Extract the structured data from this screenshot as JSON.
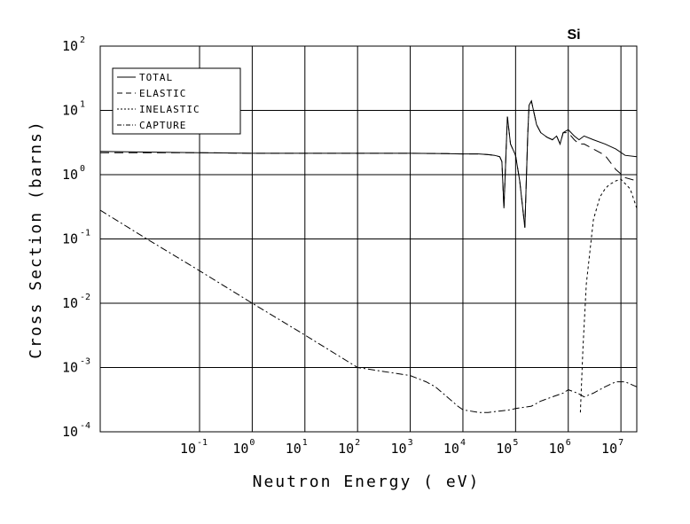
{
  "chart_data": {
    "type": "line",
    "title": "Si",
    "xlabel": "Neutron Energy ( eV)",
    "ylabel": "Cross Section (barns)",
    "xscale": "log",
    "yscale": "log",
    "xlim": [
      0.0013,
      20000000
    ],
    "ylim": [
      0.0001,
      100
    ],
    "grid": true,
    "legend_position": "top-left",
    "x_ticks": [
      {
        "base": "10",
        "exp": "-1",
        "value": 0.1
      },
      {
        "base": "10",
        "exp": "0",
        "value": 1
      },
      {
        "base": "10",
        "exp": "1",
        "value": 10
      },
      {
        "base": "10",
        "exp": "2",
        "value": 100
      },
      {
        "base": "10",
        "exp": "3",
        "value": 1000
      },
      {
        "base": "10",
        "exp": "4",
        "value": 10000
      },
      {
        "base": "10",
        "exp": "5",
        "value": 100000
      },
      {
        "base": "10",
        "exp": "6",
        "value": 1000000
      },
      {
        "base": "10",
        "exp": "7",
        "value": 10000000
      }
    ],
    "y_ticks": [
      {
        "base": "10",
        "exp": "2",
        "value": 100
      },
      {
        "base": "10",
        "exp": "1",
        "value": 10
      },
      {
        "base": "10",
        "exp": "0",
        "value": 1
      },
      {
        "base": "10",
        "exp": "-1",
        "value": 0.1
      },
      {
        "base": "10",
        "exp": "-2",
        "value": 0.01
      },
      {
        "base": "10",
        "exp": "-3",
        "value": 0.001
      },
      {
        "base": "10",
        "exp": "-4",
        "value": 0.0001
      }
    ],
    "series": [
      {
        "name": "TOTAL",
        "dash": "",
        "x": [
          0.0013,
          0.01,
          0.1,
          1,
          10,
          100,
          1000,
          5000,
          10000,
          20000,
          30000,
          40000,
          50000,
          55000,
          60000,
          70000,
          80000,
          100000,
          120000,
          150000,
          170000,
          180000,
          200000,
          250000,
          300000,
          400000,
          500000,
          600000,
          700000,
          800000,
          1000000,
          1300000,
          1600000,
          2000000,
          3000000,
          5000000,
          8000000,
          12000000,
          20000000
        ],
        "y": [
          2.3,
          2.25,
          2.2,
          2.15,
          2.15,
          2.15,
          2.15,
          2.12,
          2.1,
          2.1,
          2.05,
          2.0,
          1.9,
          1.6,
          0.3,
          8.0,
          3.0,
          2.0,
          0.8,
          0.15,
          4.0,
          12.0,
          14.0,
          6.0,
          4.5,
          3.8,
          3.5,
          4.0,
          3.0,
          4.5,
          5.0,
          4.0,
          3.5,
          4.0,
          3.5,
          3.0,
          2.5,
          2.0,
          1.9
        ]
      },
      {
        "name": "ELASTIC",
        "dash": "10,6",
        "x": [
          0.0013,
          0.01,
          0.1,
          1,
          10,
          100,
          1000,
          5000,
          10000,
          20000,
          30000,
          40000,
          50000,
          55000,
          60000,
          70000,
          80000,
          100000,
          120000,
          150000,
          170000,
          180000,
          200000,
          250000,
          300000,
          400000,
          500000,
          600000,
          700000,
          800000,
          1000000,
          1300000,
          1600000,
          2000000,
          3000000,
          5000000,
          8000000,
          12000000,
          20000000
        ],
        "y": [
          2.2,
          2.2,
          2.2,
          2.15,
          2.15,
          2.15,
          2.15,
          2.12,
          2.1,
          2.1,
          2.05,
          2.0,
          1.9,
          1.6,
          0.3,
          8.0,
          3.0,
          2.0,
          0.8,
          0.15,
          4.0,
          12.0,
          14.0,
          6.0,
          4.5,
          3.8,
          3.5,
          4.0,
          3.0,
          4.5,
          4.5,
          3.5,
          3.0,
          3.0,
          2.5,
          2.0,
          1.2,
          0.9,
          0.8
        ]
      },
      {
        "name": "INELASTIC",
        "dash": "3,3",
        "x": [
          1700000,
          1900000,
          2200000,
          3000000,
          4000000,
          5000000,
          6000000,
          7000000,
          8000000,
          10000000,
          15000000,
          20000000
        ],
        "y": [
          0.0002,
          0.002,
          0.02,
          0.2,
          0.45,
          0.6,
          0.7,
          0.75,
          0.8,
          0.85,
          0.6,
          0.3
        ]
      },
      {
        "name": "CAPTURE",
        "dash": "8,3,2,3",
        "x": [
          0.0013,
          0.01,
          0.1,
          1,
          10,
          100,
          1000,
          2000,
          3000,
          5000,
          8000,
          10000,
          20000,
          30000,
          50000,
          80000,
          100000,
          200000,
          300000,
          500000,
          800000,
          1000000,
          1500000,
          2000000,
          3000000,
          5000000,
          8000000,
          12000000,
          20000000
        ],
        "y": [
          0.28,
          0.1,
          0.032,
          0.01,
          0.0032,
          0.001,
          0.00075,
          0.0006,
          0.0005,
          0.00035,
          0.00025,
          0.00022,
          0.0002,
          0.0002,
          0.00021,
          0.00022,
          0.00023,
          0.00025,
          0.0003,
          0.00035,
          0.0004,
          0.00045,
          0.0004,
          0.00035,
          0.0004,
          0.0005,
          0.0006,
          0.0006,
          0.0005
        ]
      }
    ]
  }
}
